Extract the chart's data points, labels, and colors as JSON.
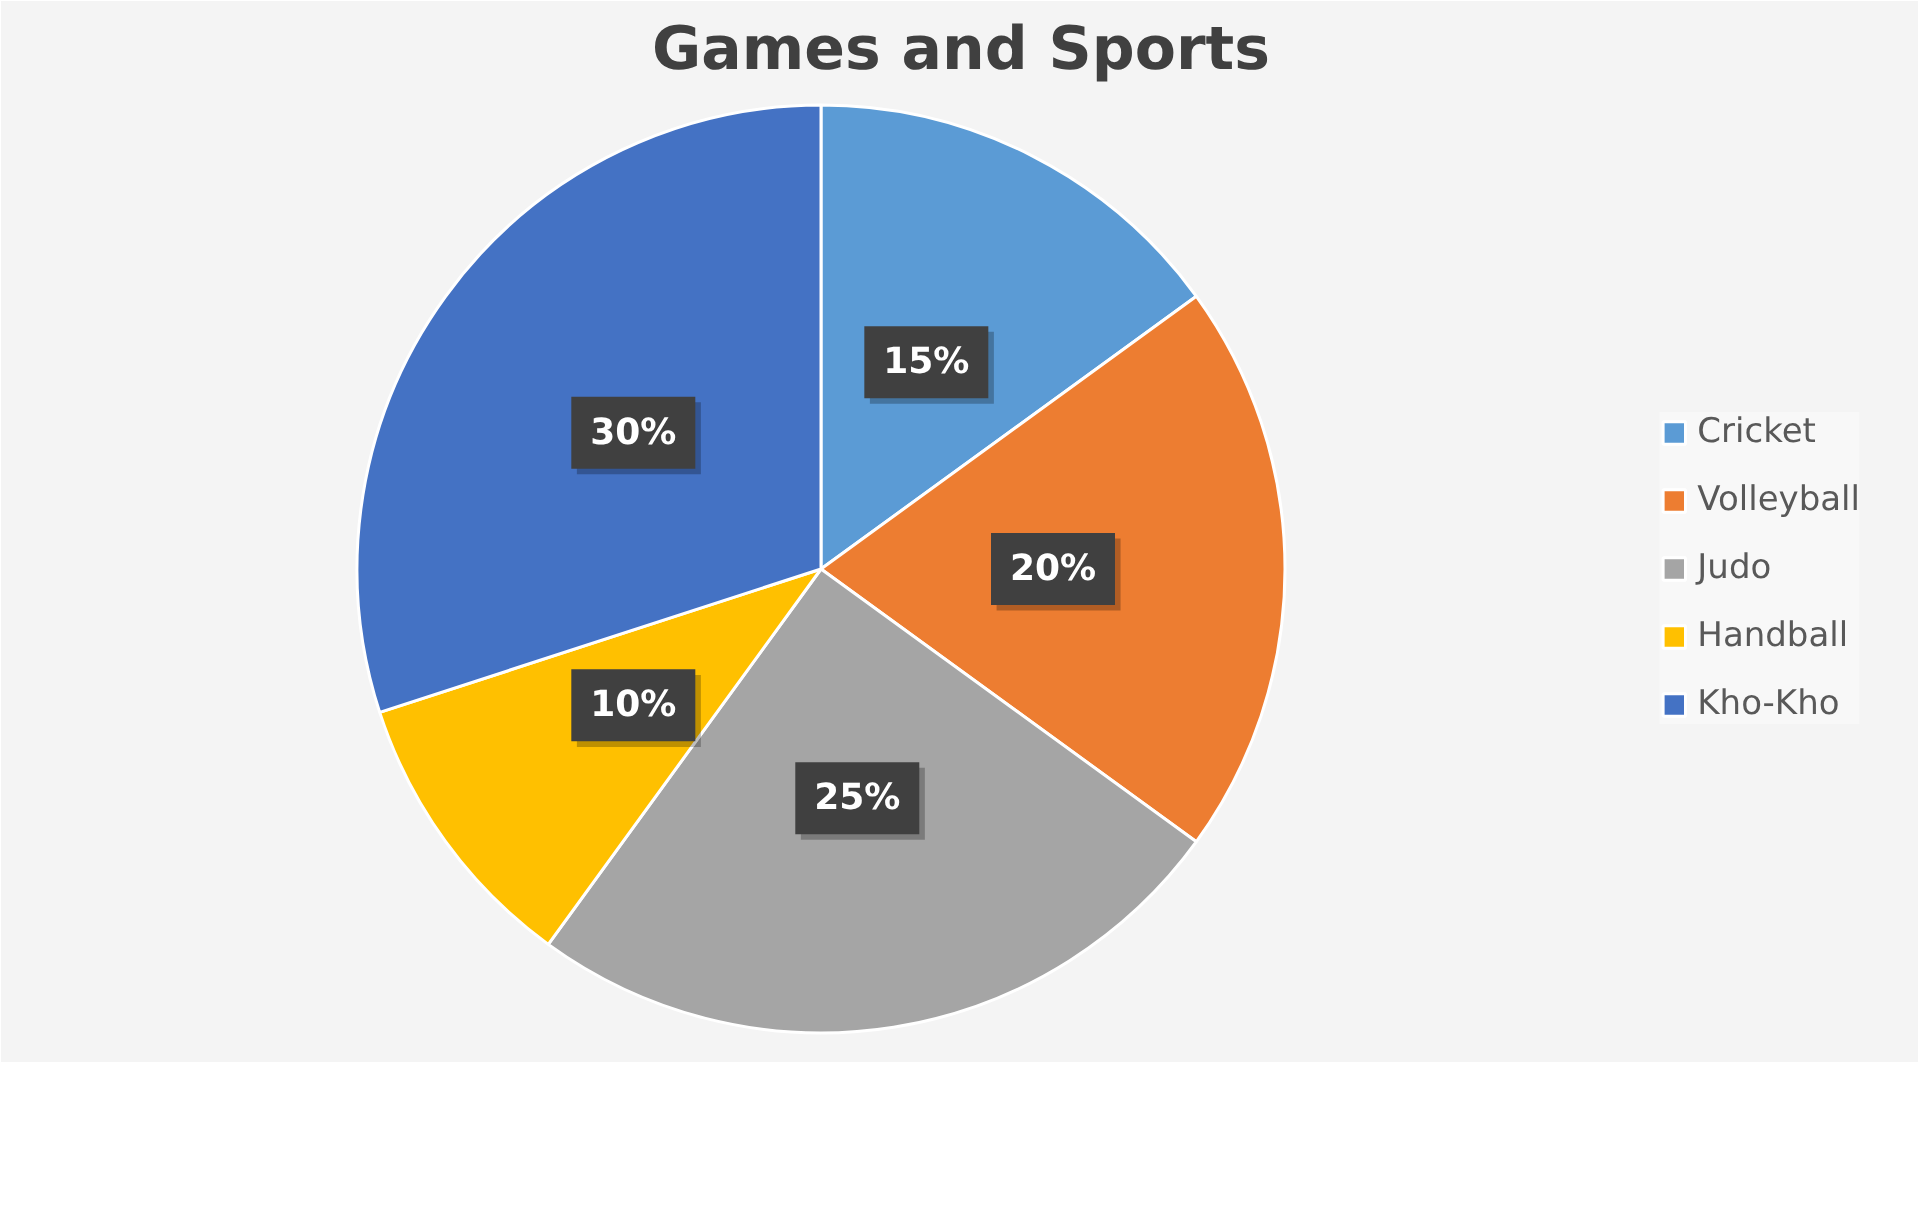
{
  "chart_data": {
    "type": "pie",
    "title": "Games and Sports",
    "categories": [
      "Cricket",
      "Volleyball",
      "Judo",
      "Handball",
      "Kho-Kho"
    ],
    "values": [
      15,
      20,
      25,
      10,
      30
    ],
    "colors": [
      "#5b9bd5",
      "#ed7d31",
      "#a5a5a5",
      "#ffc000",
      "#4472c4"
    ],
    "value_labels": [
      "15%",
      "20%",
      "25%",
      "10%",
      "30%"
    ],
    "legend": "right"
  }
}
